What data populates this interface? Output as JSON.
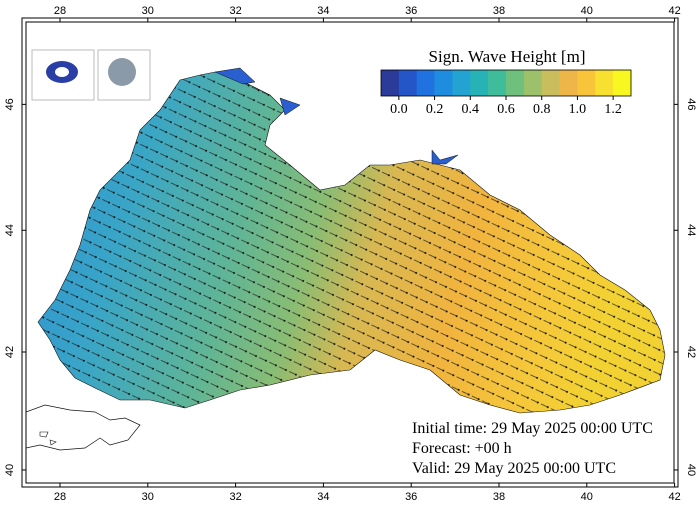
{
  "map": {
    "colorbar": {
      "title": "Sign. Wave Height [m]",
      "clim": [
        -0.1,
        1.3
      ],
      "colors": [
        "#2b3b9a",
        "#2456c8",
        "#1f72e0",
        "#1f8ddf",
        "#22a3d2",
        "#27b2b6",
        "#3fbc9a",
        "#6ec07c",
        "#9cc16a",
        "#c9bd5e",
        "#eeb548",
        "#f7c43a",
        "#f8e030",
        "#f8f820"
      ],
      "ticks": [
        {
          "value": 0,
          "label": "0.0"
        },
        {
          "value": 0.2,
          "label": "0.2"
        },
        {
          "value": 0.4,
          "label": "0.4"
        },
        {
          "value": 0.6,
          "label": "0.6"
        },
        {
          "value": 0.8,
          "label": "0.8"
        },
        {
          "value": 1.0,
          "label": "1.0"
        },
        {
          "value": 1.2,
          "label": "1.2"
        }
      ]
    },
    "lon_ticks": [
      28,
      30,
      32,
      34,
      36,
      38,
      40,
      42
    ],
    "lat_ticks": [
      40,
      42,
      44,
      46
    ],
    "info": [
      "Initial time: 29 May 2025 00:00 UTC",
      "Forecast: +00 h",
      "Valid: 29 May 2025 00:00 UTC"
    ]
  }
}
